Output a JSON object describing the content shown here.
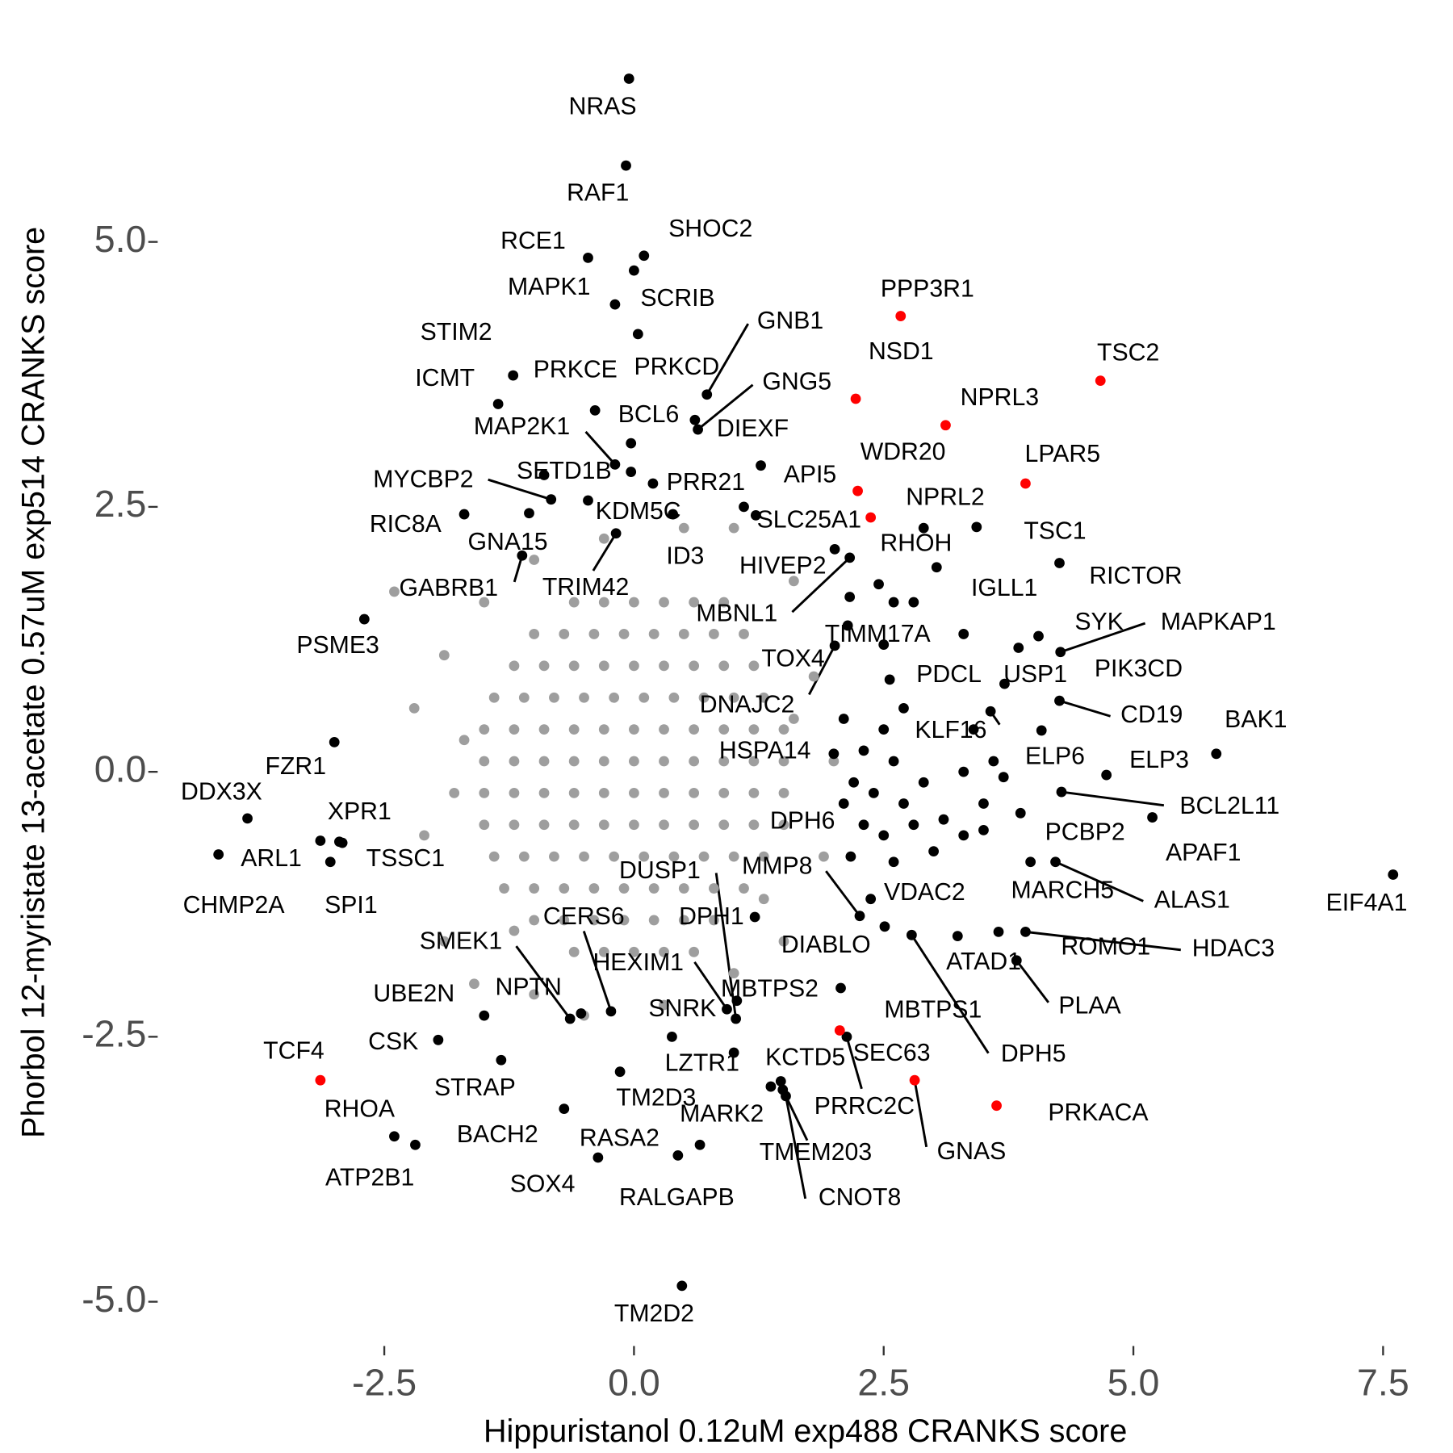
{
  "chart_data": {
    "type": "scatter",
    "x_label": "Hippuristanol 0.12uM exp488 CRANKS score",
    "y_label": "Phorbol 12-myristate 13-acetate 0.57uM exp514 CRANKS score",
    "xlim": [
      -4.75,
      8.2
    ],
    "ylim": [
      -5.4,
      7.3
    ],
    "xticks": [
      -2.5,
      {
        "value": 0,
        "label": "0.0"
      },
      2.5,
      {
        "value": 5,
        "label": "5.0"
      },
      7.5
    ],
    "yticks": [
      {
        "value": -5,
        "label": "-5.0"
      },
      -2.5,
      {
        "value": 0,
        "label": "0.0"
      },
      2.5,
      {
        "value": 5,
        "label": "5.0"
      }
    ],
    "series": [
      {
        "color": "#9e9e9e",
        "x": [
          -0.6,
          -0.3,
          0,
          0.3,
          0.6,
          0.9,
          -1.0,
          -0.7,
          -0.4,
          -0.1,
          0.2,
          0.5,
          0.8,
          1.1,
          -1.2,
          -0.9,
          -0.6,
          -0.3,
          0,
          0.3,
          0.6,
          0.9,
          1.2,
          -1.4,
          -1.1,
          -0.8,
          -0.5,
          -0.2,
          0.1,
          0.4,
          0.7,
          1.0,
          1.3,
          -1.5,
          -1.2,
          -0.9,
          -0.6,
          -0.3,
          0,
          0.3,
          0.6,
          0.9,
          1.2,
          1.5,
          -1.5,
          -1.2,
          -0.9,
          -0.6,
          -0.3,
          0,
          0.3,
          0.6,
          0.9,
          1.2,
          1.5,
          -1.5,
          -1.2,
          -0.9,
          -0.6,
          -0.3,
          0,
          0.3,
          0.6,
          0.9,
          1.2,
          1.5,
          -1.5,
          -1.2,
          -0.9,
          -0.6,
          -0.3,
          0,
          0.3,
          0.6,
          0.9,
          1.2,
          1.5,
          -1.4,
          -1.1,
          -0.8,
          -0.5,
          -0.2,
          0.1,
          0.4,
          0.7,
          1.0,
          1.3,
          -1.3,
          -1.0,
          -0.7,
          -0.4,
          -0.1,
          0.2,
          0.5,
          0.8,
          1.1,
          -1.0,
          -0.7,
          -0.4,
          -0.1,
          0.2,
          0.5,
          0.8,
          -0.6,
          -0.3,
          0,
          0.3,
          0.6,
          -2.4,
          -1.9,
          -2.2,
          -1.8,
          -2.1,
          -1.9,
          -1.6,
          -1.0,
          -0.5,
          0.3,
          1.0,
          1.5,
          1.9,
          2.0,
          1.8,
          1.6,
          1.0,
          0.5,
          -0.3,
          -1.0,
          -1.5,
          -1.2,
          1.3,
          1.6,
          -1.7
        ],
        "y": [
          1.6,
          1.6,
          1.6,
          1.6,
          1.6,
          1.6,
          1.3,
          1.3,
          1.3,
          1.3,
          1.3,
          1.3,
          1.3,
          1.3,
          1.0,
          1.0,
          1.0,
          1.0,
          1.0,
          1.0,
          1.0,
          1.0,
          1.0,
          0.7,
          0.7,
          0.7,
          0.7,
          0.7,
          0.7,
          0.7,
          0.7,
          0.7,
          0.7,
          0.4,
          0.4,
          0.4,
          0.4,
          0.4,
          0.4,
          0.4,
          0.4,
          0.4,
          0.4,
          0.4,
          0.1,
          0.1,
          0.1,
          0.1,
          0.1,
          0.1,
          0.1,
          0.1,
          0.1,
          0.1,
          0.1,
          -0.2,
          -0.2,
          -0.2,
          -0.2,
          -0.2,
          -0.2,
          -0.2,
          -0.2,
          -0.2,
          -0.2,
          -0.2,
          -0.5,
          -0.5,
          -0.5,
          -0.5,
          -0.5,
          -0.5,
          -0.5,
          -0.5,
          -0.5,
          -0.5,
          -0.5,
          -0.8,
          -0.8,
          -0.8,
          -0.8,
          -0.8,
          -0.8,
          -0.8,
          -0.8,
          -0.8,
          -0.8,
          -1.1,
          -1.1,
          -1.1,
          -1.1,
          -1.1,
          -1.1,
          -1.1,
          -1.1,
          -1.1,
          -1.4,
          -1.4,
          -1.4,
          -1.4,
          -1.4,
          -1.4,
          -1.4,
          -1.7,
          -1.7,
          -1.7,
          -1.7,
          -1.7,
          1.7,
          1.1,
          0.6,
          -0.2,
          -0.6,
          -1.6,
          -2.0,
          -2.1,
          -2.3,
          -2.2,
          -1.9,
          -1.6,
          -0.8,
          0.1,
          0.9,
          1.8,
          2.3,
          2.3,
          2.2,
          2.0,
          1.6,
          -1.5,
          -1.2,
          0.5,
          0.3
        ]
      },
      {
        "color": "#000000",
        "x": [
          -0.05,
          -0.08,
          -0.46,
          0.1,
          0.0,
          -0.19,
          0.04,
          -1.36,
          -1.21,
          -0.39,
          0.73,
          0.64,
          0.61,
          -0.03,
          -0.19,
          -0.03,
          0.19,
          1.27,
          -0.46,
          -0.83,
          -1.7,
          -1.05,
          -1.12,
          -0.18,
          1.22,
          0.39,
          2.01,
          2.16,
          2.45,
          3.43,
          4.26,
          3.03,
          4.05,
          4.27,
          3.85,
          2.16,
          2.14,
          2.01,
          2.56,
          3.71,
          4.26,
          5.83,
          4.73,
          3.57,
          4.08,
          4.28,
          5.19,
          3.87,
          3.97,
          4.22,
          7.6,
          3.92,
          3.65,
          3.24,
          3.83,
          2.78,
          2.51,
          2.37,
          2.17,
          2.26,
          2.0,
          1.02,
          1.21,
          2.07,
          1.03,
          0.93,
          -0.23,
          -0.64,
          -0.53,
          -1.5,
          0.38,
          -1.96,
          1.0,
          1.47,
          1.37,
          2.13,
          1.49,
          1.52,
          -1.33,
          -0.14,
          -2.4,
          -0.7,
          0.66,
          -2.19,
          -0.36,
          0.44,
          0.48,
          -2.7,
          -3.0,
          -3.87,
          -2.95,
          -3.14,
          -2.92,
          -4.16,
          -3.04,
          2.1,
          2.3,
          2.5,
          2.6,
          2.4,
          2.2,
          2.7,
          2.9,
          2.3,
          2.5,
          2.8,
          3.1,
          3.3,
          2.6,
          3.0,
          3.5,
          3.3,
          3.6,
          3.4,
          2.7,
          2.8,
          2.6,
          3.5,
          2.1,
          3.7,
          -0.9,
          1.1,
          2.5,
          3.3,
          2.9
        ],
        "y": [
          6.54,
          5.72,
          4.85,
          4.87,
          4.73,
          4.41,
          4.13,
          3.47,
          3.74,
          3.41,
          3.56,
          3.23,
          3.32,
          3.1,
          2.9,
          2.83,
          2.72,
          2.89,
          2.56,
          2.57,
          2.43,
          2.44,
          2.04,
          2.25,
          2.42,
          2.43,
          2.1,
          2.02,
          1.77,
          2.31,
          1.97,
          1.93,
          1.28,
          1.13,
          1.17,
          1.65,
          1.38,
          1.19,
          0.87,
          0.83,
          0.67,
          0.17,
          -0.03,
          0.57,
          0.39,
          -0.19,
          -0.43,
          -0.39,
          -0.85,
          -0.85,
          -0.97,
          -1.51,
          -1.51,
          -1.55,
          -1.78,
          -1.54,
          -1.46,
          -1.2,
          -0.8,
          -1.36,
          0.17,
          -2.33,
          -1.37,
          -2.04,
          -2.16,
          -2.24,
          -2.26,
          -2.33,
          -2.28,
          -2.3,
          -2.5,
          -2.53,
          -2.65,
          -2.92,
          -2.97,
          -2.5,
          -3.0,
          -3.06,
          -2.72,
          -2.83,
          -3.44,
          -3.18,
          -3.52,
          -3.52,
          -3.64,
          -3.62,
          -4.85,
          1.44,
          0.28,
          -0.44,
          -0.66,
          -0.65,
          -0.67,
          -0.78,
          -0.85,
          0.5,
          0.2,
          0.4,
          0.1,
          -0.2,
          -0.1,
          -0.3,
          -0.1,
          -0.5,
          -0.6,
          -0.5,
          -0.45,
          -0.6,
          -0.85,
          -0.75,
          -0.55,
          0.0,
          0.1,
          0.4,
          0.6,
          1.6,
          1.6,
          -0.3,
          -0.3,
          -0.05,
          2.8,
          2.5,
          1.2,
          1.3,
          2.3
        ],
        "labels": [
          "NRAS",
          "RAF1",
          "RCE1",
          "SHOC2",
          "MAPK1",
          "SCRIB",
          "STIM2",
          "ICMT",
          "PRKCE",
          "PRKCD",
          "GNB1",
          "GNG5",
          "DIEXF",
          "BCL6",
          "MAP2K1",
          "SETD1B",
          "PRR21",
          "API5",
          "KDM5C",
          "MYCBP2",
          "RIC8A",
          "GNA15",
          "GABRB1",
          "TRIM42",
          "SLC25A1",
          "ID3",
          "HIVEP2",
          "MBNL1",
          "RHOH",
          "TSC1",
          "RICTOR",
          "IGLL1",
          "SYK",
          "MAPKAP1",
          "PIK3CD",
          "TIMM17A",
          "TOX4",
          "DNAJC2",
          "PDCL",
          "USP1",
          "CD19",
          "BAK1",
          "ELP3",
          "KLF16",
          "ELP6",
          "BCL2L11",
          "APAF1",
          "PCBP2",
          "MARCH5",
          "ALAS1",
          "EIF4A1",
          "HDAC3",
          "ROMO1",
          "ATAD1",
          "PLAA",
          "DPH5",
          "MBTPS1",
          "VDAC2",
          "DPH6",
          "MMP8",
          "HSPA14",
          "DUSP1",
          "DPH1",
          "DIABLO",
          "MBTPS2",
          "HEXIM1",
          "CERS6",
          "SMEK1",
          "NPTN",
          "UBE2N",
          "SNRK",
          "CSK",
          "LZTR1",
          "KCTD5",
          "MARK2",
          "PRRC2C",
          "TMEM203",
          "CNOT8",
          "STRAP",
          "TM2D3",
          "RHOA",
          "BACH2",
          "RASA2",
          "ATP2B1",
          "SOX4",
          "RALGAPB",
          "TM2D2",
          "PSME3",
          "FZR1",
          "DDX3X",
          "XPR1",
          "ARL1",
          "TSSC1",
          "CHMP2A",
          "SPI1",
          null,
          null,
          null,
          null,
          null,
          null,
          null,
          null,
          null,
          null,
          null,
          null,
          null,
          null,
          null,
          null,
          null,
          null,
          null,
          null,
          null,
          null,
          null,
          null,
          null,
          null,
          null,
          null,
          null,
          null
        ]
      },
      {
        "color": "#ff0000",
        "x": [
          2.67,
          2.22,
          4.67,
          3.12,
          3.92,
          2.24,
          2.37,
          -3.14,
          2.06,
          2.81,
          3.63
        ],
        "y": [
          4.3,
          3.52,
          3.69,
          3.27,
          2.72,
          2.65,
          2.4,
          -2.91,
          -2.44,
          -2.91,
          -3.15
        ],
        "labels": [
          "PPP3R1",
          "NSD1",
          "TSC2",
          "NPRL3",
          "LPAR5",
          "WDR20",
          "NPRL2",
          "TCF4",
          "SEC63",
          "GNAS",
          "PRKACA"
        ]
      }
    ]
  }
}
